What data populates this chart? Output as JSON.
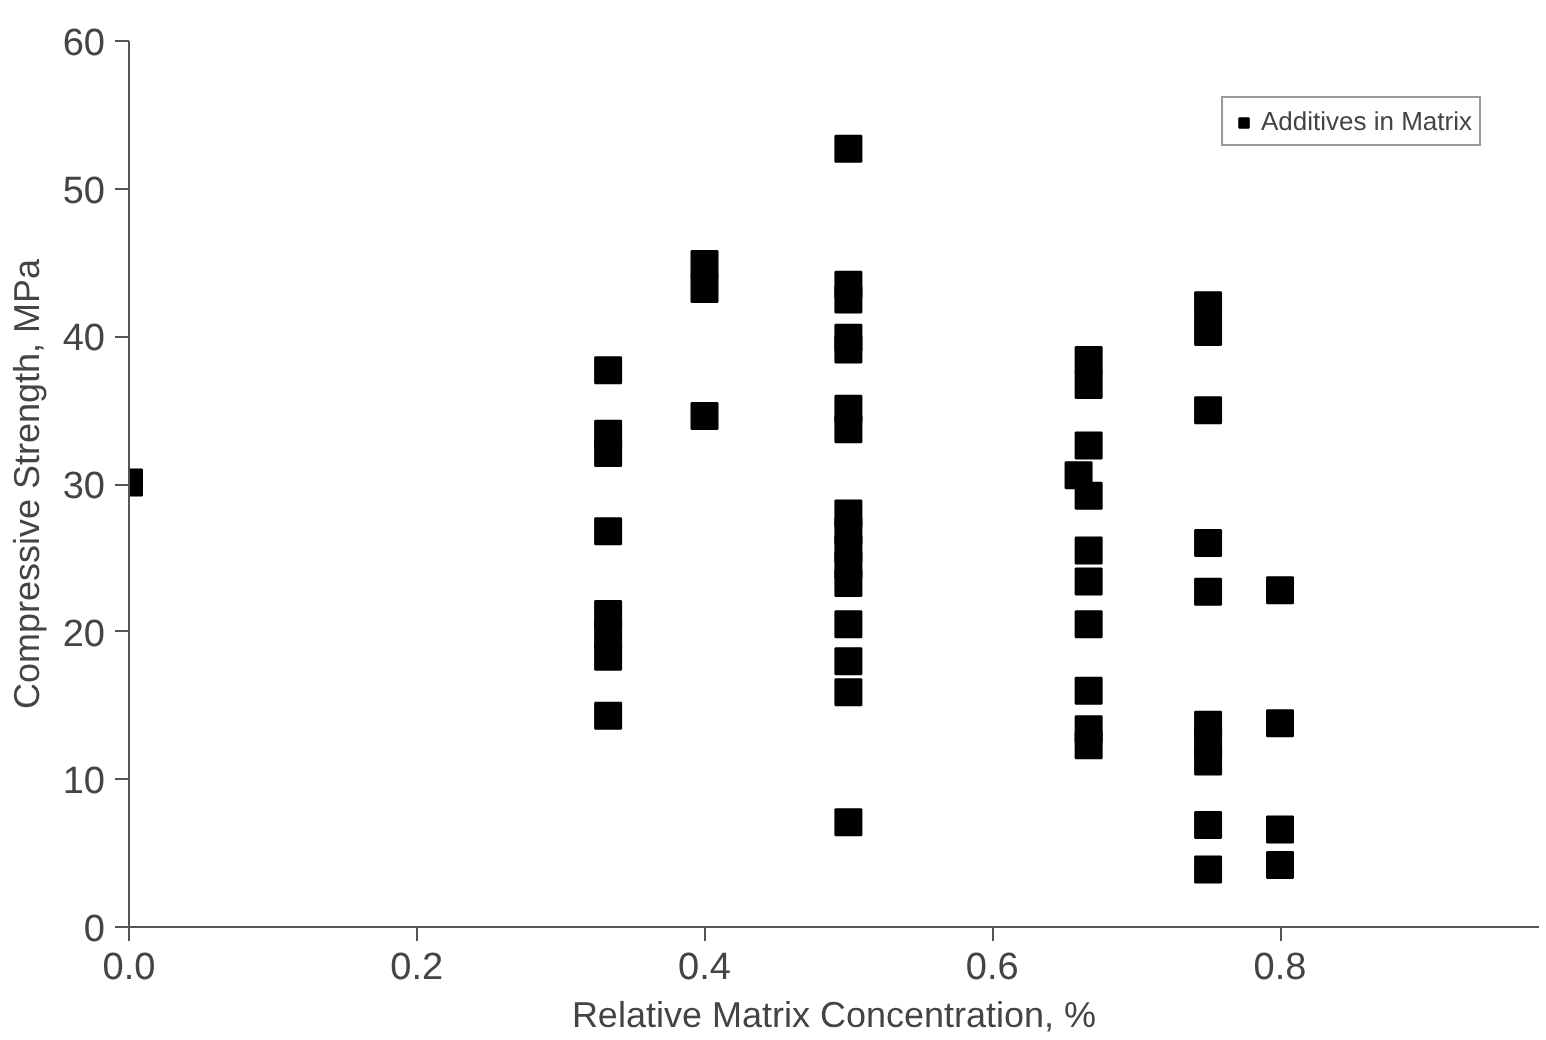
{
  "chart_data": {
    "type": "scatter",
    "xlabel": "Relative Matrix Concentration, %",
    "ylabel": "Compressive Strength, MPa",
    "xlim": [
      0,
      0.98
    ],
    "ylim": [
      0,
      60
    ],
    "xticks": [
      {
        "value": 0,
        "label": "0.0"
      },
      {
        "value": 0.2,
        "label": "0.2"
      },
      {
        "value": 0.4,
        "label": "0.4"
      },
      {
        "value": 0.6,
        "label": "0.6"
      },
      {
        "value": 0.8,
        "label": "0.8"
      }
    ],
    "yticks": [
      0,
      10,
      20,
      30,
      40,
      50,
      60
    ],
    "grid": false,
    "legend": "top right",
    "marker": "square",
    "series": [
      {
        "name": "Additives in Matrix",
        "color": "#000000",
        "x": [
          0,
          0.333,
          0.333,
          0.333,
          0.333,
          0.333,
          0.333,
          0.333,
          0.333,
          0.4,
          0.4,
          0.4,
          0.5,
          0.5,
          0.5,
          0.5,
          0.5,
          0.5,
          0.5,
          0.5,
          0.5,
          0.5,
          0.5,
          0.5,
          0.5,
          0.5,
          0.5,
          0.5,
          0.667,
          0.667,
          0.667,
          0.66,
          0.667,
          0.667,
          0.667,
          0.667,
          0.667,
          0.667,
          0.667,
          0.75,
          0.75,
          0.75,
          0.75,
          0.75,
          0.75,
          0.75,
          0.75,
          0.75,
          0.75,
          0.8,
          0.8,
          0.8,
          0.8
        ],
        "values": [
          30.1,
          37.7,
          33.4,
          32.1,
          26.8,
          21.2,
          19.8,
          18.3,
          14.3,
          44.9,
          43.2,
          34.6,
          52.7,
          43.5,
          42.5,
          39.9,
          39.1,
          35.1,
          33.7,
          28.0,
          26.8,
          25.6,
          24.5,
          23.3,
          20.5,
          18.0,
          15.9,
          7.1,
          38.4,
          36.7,
          32.6,
          30.6,
          29.2,
          25.5,
          23.4,
          20.5,
          16.0,
          13.4,
          12.3,
          42.1,
          40.3,
          35.0,
          26.0,
          22.7,
          13.7,
          12.5,
          11.2,
          6.9,
          3.9,
          22.8,
          13.8,
          6.6,
          4.2
        ]
      }
    ]
  }
}
